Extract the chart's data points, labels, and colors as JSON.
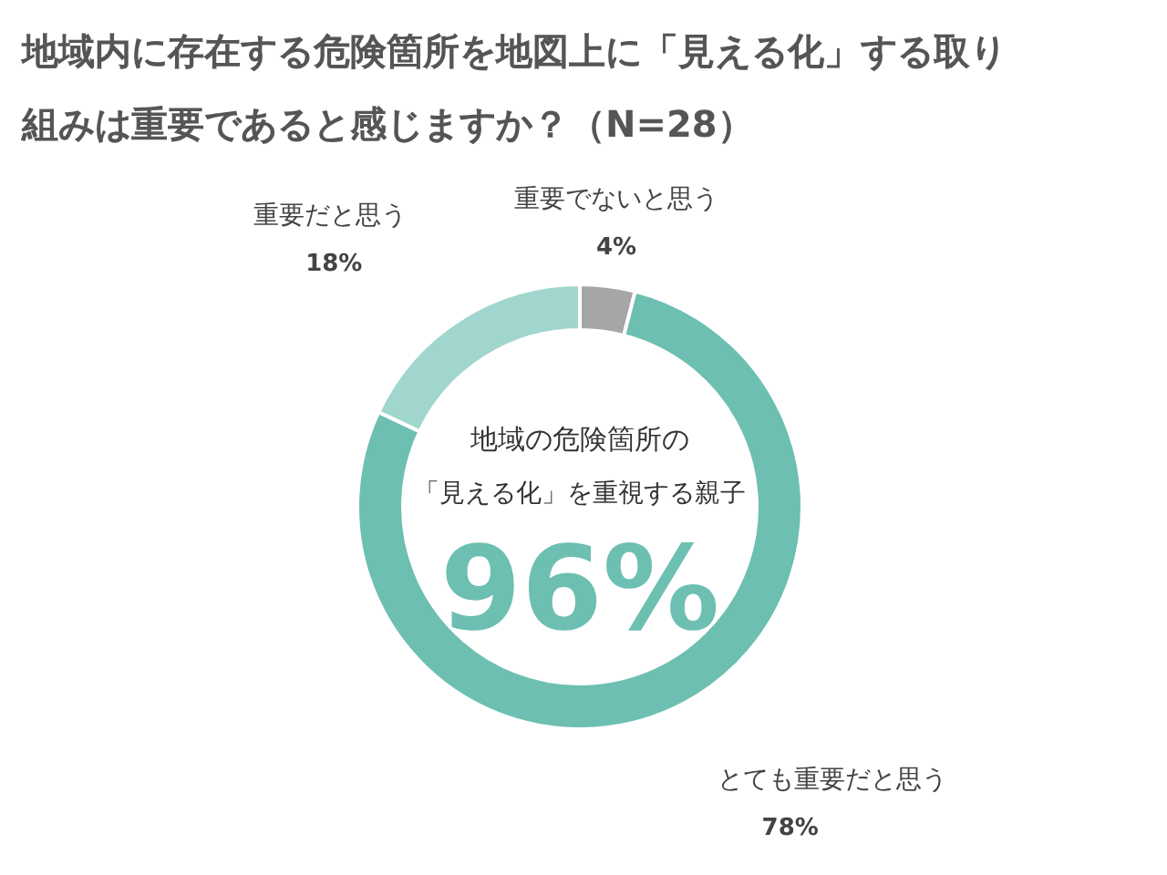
{
  "chart_data": {
    "type": "donut",
    "title": "地域内に存在する危険箇所を地図上に「見える化」する取り組みは重要であると感じますか？（N=28）",
    "categories": [
      "重要でないと思う",
      "とても重要だと思う",
      "重要だと思う"
    ],
    "values": [
      4,
      78,
      18
    ],
    "value_labels": [
      "4%",
      "78%",
      "18%"
    ],
    "colors": [
      "#a6a6a6",
      "#6dbfb2",
      "#a0d6cd"
    ],
    "annotations": [
      "地域の危険箇所の",
      "「見える化」を重視する親子",
      "96%"
    ]
  }
}
